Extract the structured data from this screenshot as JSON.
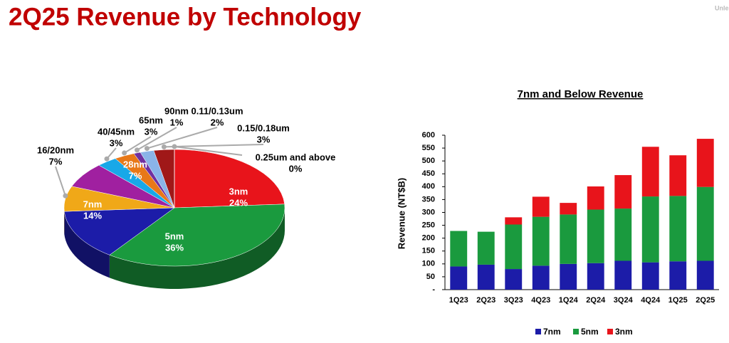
{
  "title": "2Q25 Revenue by Technology",
  "corner_label": "Unle",
  "chart_data": [
    {
      "type": "pie",
      "categories": [
        "3nm",
        "5nm",
        "7nm",
        "16/20nm",
        "28nm",
        "40/45nm",
        "65nm",
        "90nm",
        "0.11/0.13um",
        "0.15/0.18um",
        "0.25um and above"
      ],
      "values": [
        24,
        36,
        14,
        7,
        7,
        3,
        3,
        1,
        2,
        3,
        0
      ],
      "value_labels": [
        "24%",
        "36%",
        "14%",
        "7%",
        "7%",
        "3%",
        "3%",
        "1%",
        "2%",
        "3%",
        "0%"
      ],
      "colors": [
        "#e8141b",
        "#1a9a3e",
        "#1c1ca8",
        "#f0a818",
        "#a020a0",
        "#18a8e8",
        "#e87818",
        "#7030a0",
        "#8ab4e8",
        "#a01818",
        "#606060"
      ]
    },
    {
      "type": "bar",
      "stacked": true,
      "title": "7nm and Below Revenue",
      "y_label": "Revenue (NT$B)",
      "categories": [
        "1Q23",
        "2Q23",
        "3Q23",
        "4Q23",
        "1Q24",
        "2Q24",
        "3Q24",
        "4Q24",
        "1Q25",
        "2Q25"
      ],
      "series": [
        {
          "name": "7nm",
          "color": "#1c1ca8",
          "values": [
            90,
            97,
            80,
            93,
            100,
            103,
            112,
            106,
            110,
            112
          ]
        },
        {
          "name": "5nm",
          "color": "#1a9a3e",
          "values": [
            138,
            128,
            173,
            190,
            192,
            208,
            203,
            256,
            254,
            287
          ]
        },
        {
          "name": "3nm",
          "color": "#e8141b",
          "values": [
            0,
            0,
            28,
            78,
            45,
            90,
            130,
            193,
            158,
            187
          ]
        }
      ],
      "ylim": [
        0,
        600
      ],
      "yticks": [
        {
          "value": 0,
          "label": "-"
        },
        50,
        100,
        150,
        200,
        250,
        300,
        350,
        400,
        450,
        500,
        550,
        600
      ],
      "grid": false
    }
  ]
}
